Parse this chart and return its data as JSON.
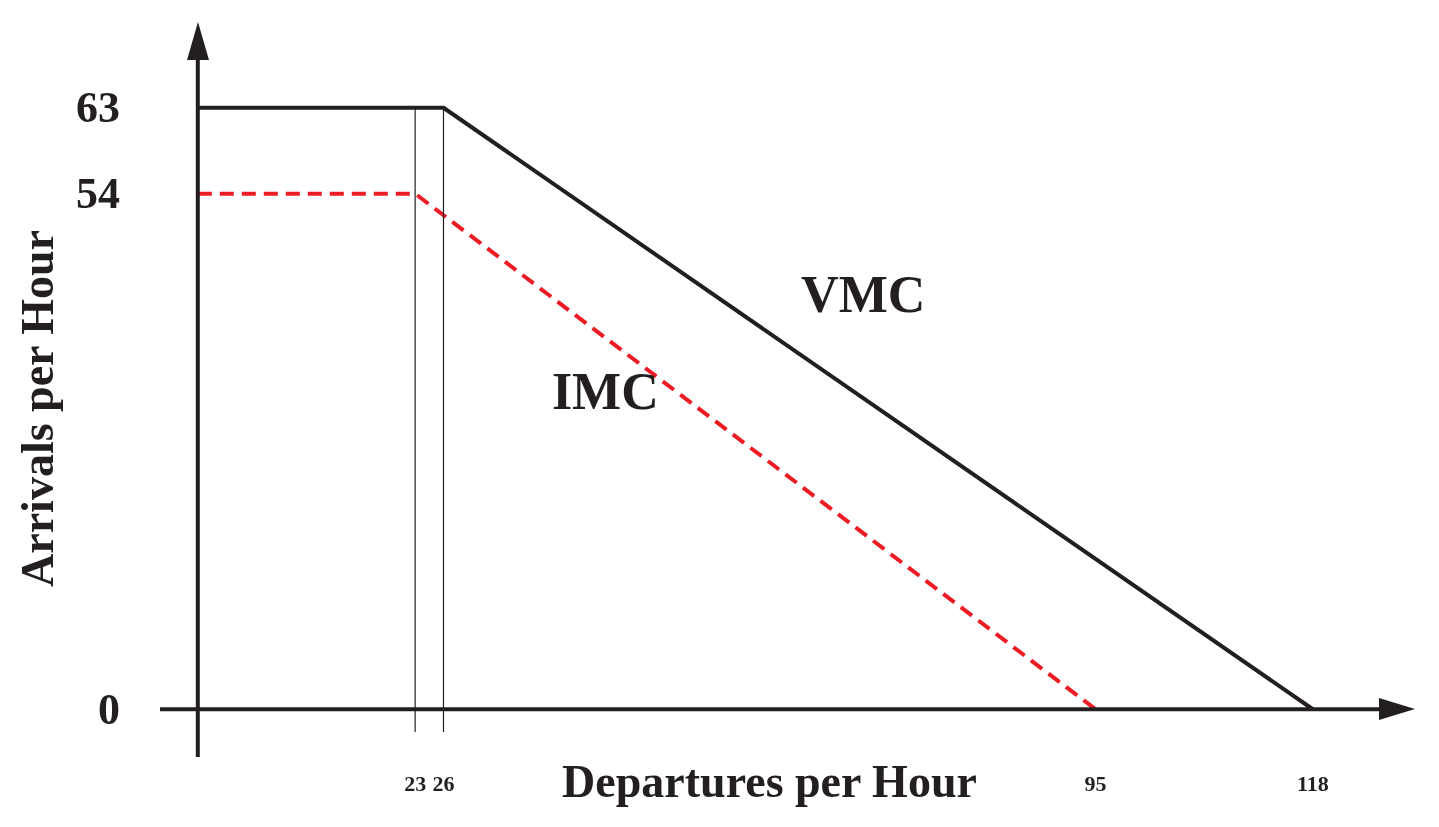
{
  "chart_data": {
    "type": "line",
    "xlabel": "Departures per Hour",
    "ylabel": "Arrivals per Hour",
    "xlim": [
      -4,
      125
    ],
    "ylim": [
      -5,
      68
    ],
    "xticks": [
      23,
      26,
      95,
      118
    ],
    "yticks": [
      0,
      54,
      63
    ],
    "grid": false,
    "legend": false,
    "marker": "none",
    "series": [
      {
        "name": "VMC",
        "color": "#231f20",
        "x": [
          0,
          26,
          118
        ],
        "values": [
          63,
          63,
          0
        ],
        "line_style": "solid"
      },
      {
        "name": "IMC",
        "color": "#ed1c24",
        "x": [
          0,
          23,
          95
        ],
        "values": [
          54,
          54,
          0
        ],
        "line_style": "dashed"
      }
    ],
    "ref_lines": [
      {
        "axis": "x",
        "value": 23,
        "color": "#231f20"
      },
      {
        "axis": "x",
        "value": 26,
        "color": "#231f20"
      }
    ]
  }
}
